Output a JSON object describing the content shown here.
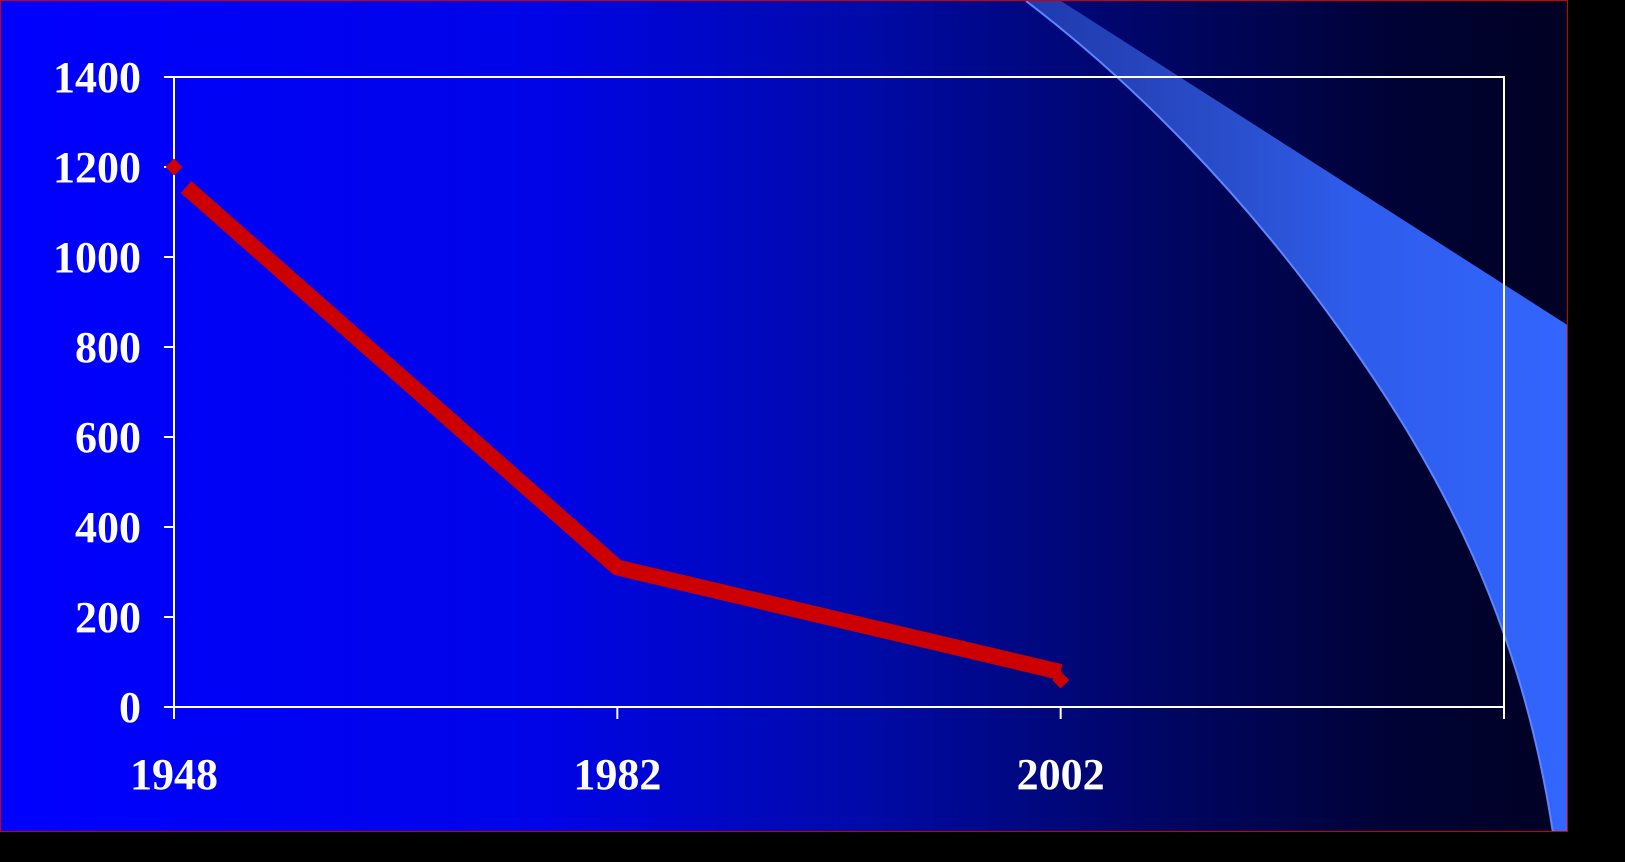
{
  "chart_data": {
    "type": "line",
    "title": "",
    "xlabel": "",
    "ylabel": "",
    "categories": [
      "1948",
      "1982",
      "2002"
    ],
    "series": [
      {
        "values": [
          1200,
          310,
          60
        ]
      }
    ],
    "ylim": [
      0,
      1400
    ],
    "yticks": [
      0,
      200,
      400,
      600,
      800,
      1000,
      1200,
      1400
    ],
    "grid": false,
    "legend": "none"
  },
  "colors": {
    "background_start": "#0000ff",
    "background_end": "#000122",
    "axis": "#ffffff",
    "series_line": "#cc0000",
    "swoosh": "#3366ff",
    "border": "#cc0000"
  }
}
